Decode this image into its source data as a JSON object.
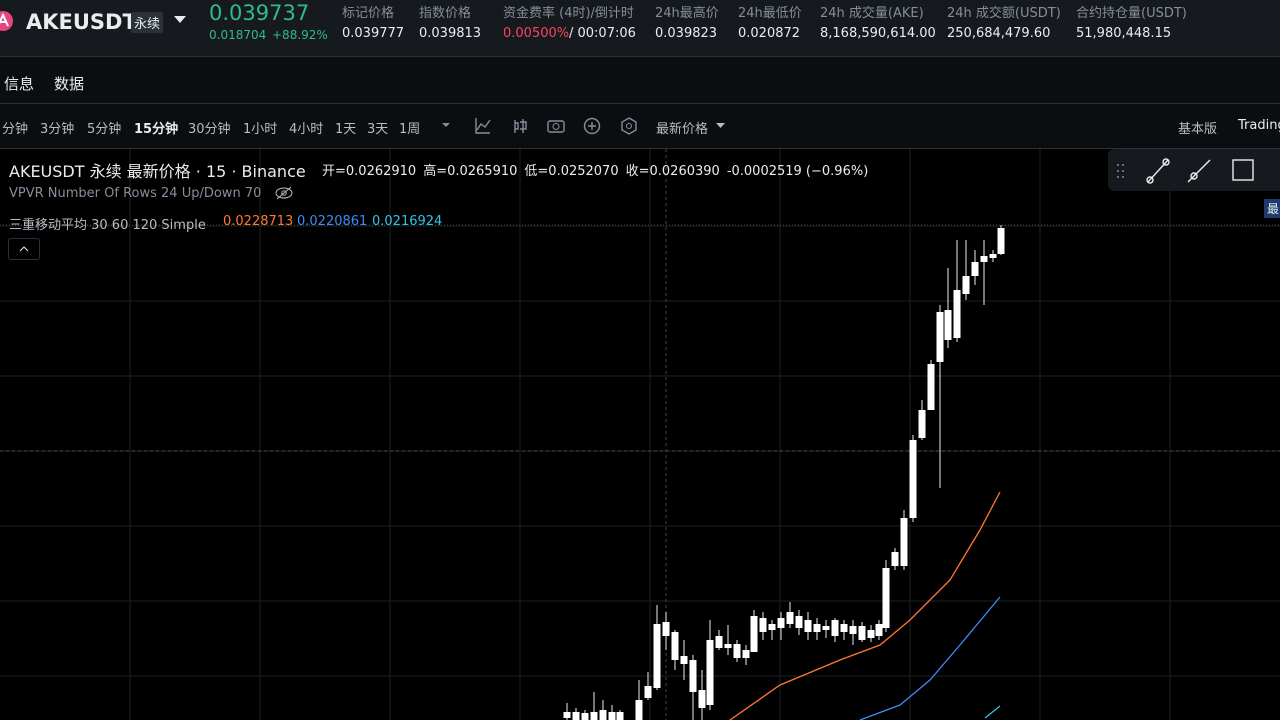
{
  "header": {
    "symbol": "AKEUSDT",
    "badge": "永续",
    "price": "0.039737",
    "change": "0.018704",
    "change_pct": "+88.92%",
    "stats": [
      {
        "label": "标记价格",
        "value": "0.039777"
      },
      {
        "label": "指数价格",
        "value": "0.039813"
      },
      {
        "label": "资金费率 (4时)/倒计时",
        "value": "0.00500%",
        "extra": "/ 00:07:06"
      },
      {
        "label": "24h最高价",
        "value": "0.039823"
      },
      {
        "label": "24h最低价",
        "value": "0.020872"
      },
      {
        "label": "24h 成交量(AKE)",
        "value": "8,168,590,614.00"
      },
      {
        "label": "24h 成交额(USDT)",
        "value": "250,684,479.60"
      },
      {
        "label": "合约持仓量(USDT)",
        "value": "51,980,448.15"
      }
    ]
  },
  "tabs": [
    "信息",
    "数据"
  ],
  "toolbar": {
    "intervals": [
      "分钟",
      "3分钟",
      "5分钟",
      "15分钟",
      "30分钟",
      "1小时",
      "4小时",
      "1天",
      "3天",
      "1周"
    ],
    "active_interval": "15分钟",
    "price_type": "最新价格",
    "right": [
      "基本版",
      "Trading"
    ]
  },
  "legend": {
    "title": "AKEUSDT 永续 最新价格 · 15 · Binance",
    "ohlc": [
      "开=0.0262910",
      "高=0.0265910",
      "低=0.0252070",
      "收=0.0260390"
    ],
    "change": "-0.0002519 (−0.96%)",
    "vpvr": "VPVR Number Of Rows 24 Up/Down 70",
    "ma_name": "三重移动平均 30 60 120 Simple",
    "ma_values": [
      "0.0228713",
      "0.0220861",
      "0.0216924"
    ],
    "edge_label": "最"
  }
}
